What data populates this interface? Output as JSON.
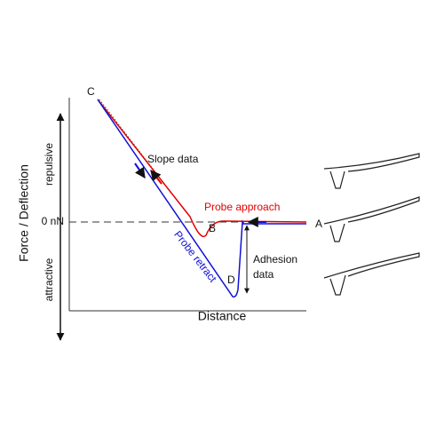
{
  "axes": {
    "y_title": "Force / Deflection",
    "y_upper": "repulsive",
    "y_lower": "attractive",
    "zero": "0 nN",
    "x_title": "Distance"
  },
  "points": {
    "a": "A",
    "b": "B",
    "c": "C",
    "d": "D"
  },
  "annotations": {
    "slope": "Slope data",
    "approach": "Probe approach",
    "retract": "Probe retract",
    "adhesion_line1": "Adhesion",
    "adhesion_line2": "data"
  }
}
